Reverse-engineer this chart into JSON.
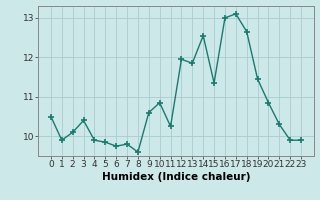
{
  "title": "",
  "xlabel": "Humidex (Indice chaleur)",
  "ylabel": "",
  "x_values": [
    0,
    1,
    2,
    3,
    4,
    5,
    6,
    7,
    8,
    9,
    10,
    11,
    12,
    13,
    14,
    15,
    16,
    17,
    18,
    19,
    20,
    21,
    22,
    23
  ],
  "y_values": [
    10.5,
    9.9,
    10.1,
    10.4,
    9.9,
    9.85,
    9.75,
    9.8,
    9.6,
    10.6,
    10.85,
    10.25,
    11.95,
    11.85,
    12.55,
    11.35,
    13.0,
    13.1,
    12.65,
    11.45,
    10.85,
    10.3,
    9.9,
    9.9
  ],
  "line_color": "#1a7a6e",
  "marker": "+",
  "marker_size": 4.0,
  "line_width": 1.0,
  "background_color": "#cce8e8",
  "grid_color": "#aacccc",
  "ylim": [
    9.5,
    13.3
  ],
  "yticks": [
    10,
    11,
    12,
    13
  ],
  "xticks": [
    0,
    1,
    2,
    3,
    4,
    5,
    6,
    7,
    8,
    9,
    10,
    11,
    12,
    13,
    14,
    15,
    16,
    17,
    18,
    19,
    20,
    21,
    22,
    23
  ],
  "tick_fontsize": 6.5,
  "xlabel_fontsize": 7.5,
  "spine_color": "#888888"
}
